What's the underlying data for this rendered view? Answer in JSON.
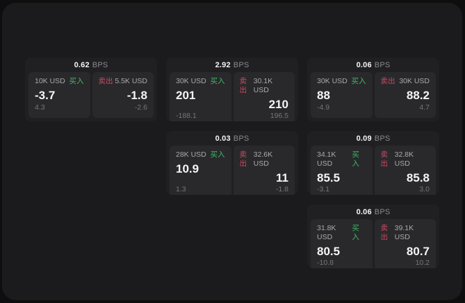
{
  "theme": {
    "page_bg": "#0e0e0f",
    "window_bg": "#1b1b1d",
    "card_bg": "#202023",
    "panel_bg": "#29292c",
    "buy_color": "#3cba64",
    "sell_color": "#c84a5f"
  },
  "labels": {
    "bps": "BPS",
    "buy": "买入",
    "sell": "卖出"
  },
  "cards": [
    {
      "bps": "0.62",
      "buy": {
        "amount": "10K USD",
        "price": "-3.7",
        "delta": "4.3"
      },
      "sell": {
        "amount": "5.5K USD",
        "price": "-1.8",
        "delta": "-2.6"
      }
    },
    {
      "bps": "2.92",
      "buy": {
        "amount": "30K USD",
        "price": "201",
        "delta": "-188.1"
      },
      "sell": {
        "amount": "30.1K USD",
        "price": "210",
        "delta": "196.5"
      }
    },
    {
      "bps": "0.06",
      "buy": {
        "amount": "30K USD",
        "price": "88",
        "delta": "-4.9"
      },
      "sell": {
        "amount": "30K USD",
        "price": "88.2",
        "delta": "4.7"
      }
    },
    {
      "bps": "0.03",
      "buy": {
        "amount": "28K USD",
        "price": "10.9",
        "delta": "1.3"
      },
      "sell": {
        "amount": "32.6K USD",
        "price": "11",
        "delta": "-1.8"
      }
    },
    {
      "bps": "0.09",
      "buy": {
        "amount": "34.1K USD",
        "price": "85.5",
        "delta": "-3.1"
      },
      "sell": {
        "amount": "32.8K USD",
        "price": "85.8",
        "delta": "3.0"
      }
    },
    {
      "bps": "0.06",
      "buy": {
        "amount": "31.8K USD",
        "price": "80.5",
        "delta": "-10.8"
      },
      "sell": {
        "amount": "39.1K USD",
        "price": "80.7",
        "delta": "10.2"
      }
    }
  ]
}
